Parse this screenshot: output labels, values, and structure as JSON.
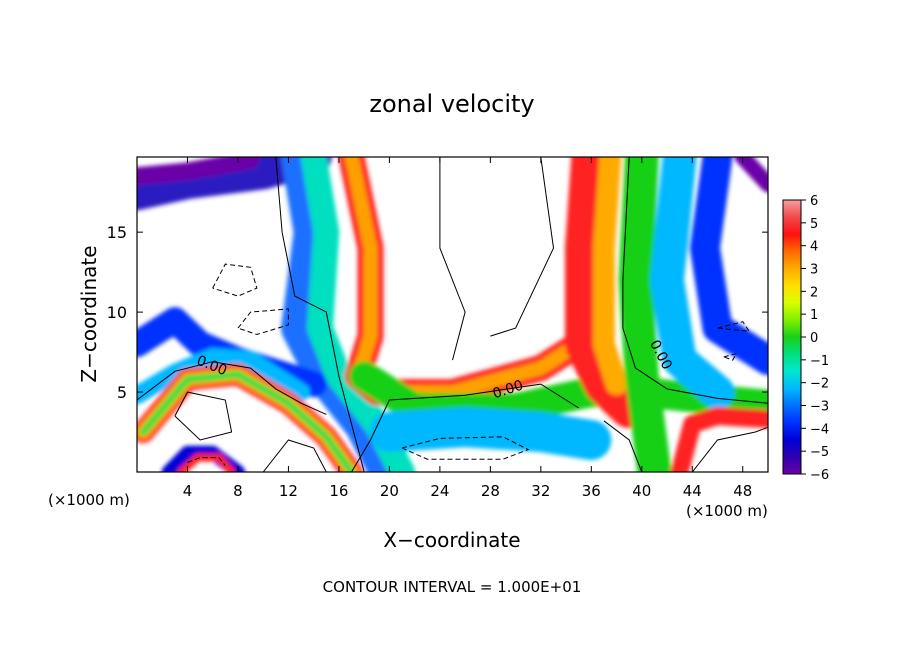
{
  "chart_data": {
    "type": "heatmap",
    "title": "zonal velocity",
    "xlabel": "X−coordinate",
    "ylabel": "Z−coordinate",
    "x_unit_left": "(×1000 m)",
    "x_unit_right": "(×1000 m)",
    "footer": "CONTOUR INTERVAL = 1.000E+01",
    "xlim": [
      0,
      50
    ],
    "ylim": [
      0,
      19.7
    ],
    "x_ticks": [
      4,
      8,
      12,
      16,
      20,
      24,
      28,
      32,
      36,
      40,
      44,
      48
    ],
    "y_ticks": [
      5,
      10,
      15
    ],
    "colorbar": {
      "ticks": [
        "6",
        "5",
        "4",
        "3",
        "2",
        "1",
        "0",
        "−1",
        "−2",
        "−3",
        "−4",
        "−5",
        "−6"
      ],
      "range": [
        -6,
        6
      ],
      "colors": [
        "#f7a0a0",
        "#ef4a4a",
        "#ff1010",
        "#ff6a00",
        "#ffaa00",
        "#ffe000",
        "#d8ff00",
        "#80f000",
        "#18d018",
        "#00e080",
        "#00e8d0",
        "#00b8ff",
        "#0070ff",
        "#0030ff",
        "#0000d8",
        "#3000b0",
        "#6a00a8"
      ]
    },
    "contour_labels": [
      {
        "text": "0.00",
        "x": 5.8,
        "y": 6.4,
        "angle": 22
      },
      {
        "text": "0.00",
        "x": 29.5,
        "y": 4.9,
        "angle": -18
      },
      {
        "text": "0.00",
        "x": 41.2,
        "y": 7.2,
        "angle": 62
      }
    ],
    "fields": [
      {
        "name": "band",
        "type": "line",
        "color": "#ff2020",
        "width": 22,
        "points": [
          [
            0.5,
            2.5
          ],
          [
            4,
            5.8
          ],
          [
            8,
            6.1
          ],
          [
            12,
            4.3
          ],
          [
            15,
            2.2
          ],
          [
            17,
            0
          ]
        ]
      },
      {
        "name": "band",
        "type": "line",
        "color": "#ffa000",
        "width": 14,
        "points": [
          [
            0.5,
            2.5
          ],
          [
            4,
            5.8
          ],
          [
            8,
            6.1
          ],
          [
            12,
            4.3
          ],
          [
            15,
            2.2
          ],
          [
            17,
            0
          ]
        ]
      },
      {
        "name": "band",
        "type": "line",
        "color": "#40e040",
        "width": 8,
        "points": [
          [
            0.5,
            2.5
          ],
          [
            4,
            5.8
          ],
          [
            8,
            6.1
          ],
          [
            12,
            4.3
          ],
          [
            15,
            2.2
          ],
          [
            17,
            0
          ]
        ]
      }
    ]
  }
}
